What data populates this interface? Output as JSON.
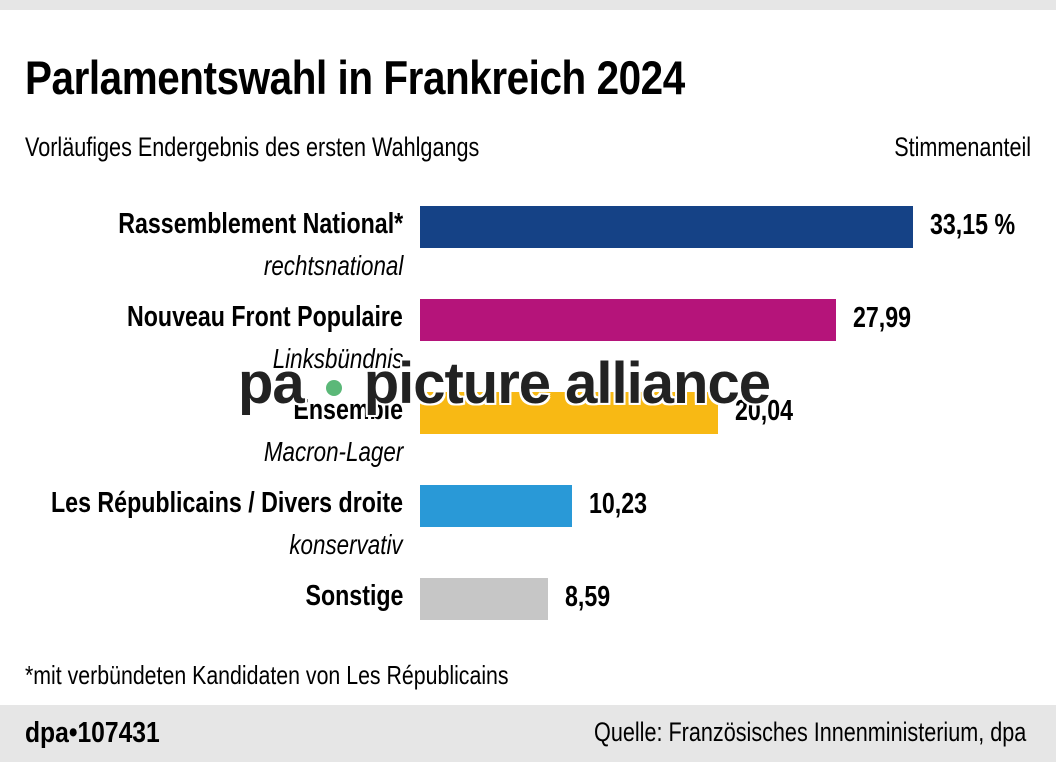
{
  "title": "Parlamentswahl in Frankreich 2024",
  "subtitle": "Vorläufiges Endergebnis des ersten Wahlgangs",
  "unit_label": "Stimmenanteil",
  "footnote": "*mit verbündeten Kandidaten von Les Républicains",
  "footer": {
    "id": "dpa•107431",
    "source": "Quelle: Französisches Innenministerium, dpa"
  },
  "watermark": {
    "left": "pa",
    "right": "picture alliance",
    "dot_color": "#5bb878"
  },
  "chart_data": {
    "type": "bar",
    "orientation": "horizontal",
    "title": "Parlamentswahl in Frankreich 2024",
    "xlabel": "Stimmenanteil",
    "xlim": [
      0,
      33.15
    ],
    "grid": false,
    "categories": [
      "Rassemblement National*",
      "Nouveau Front Populaire",
      "Ensemble",
      "Les Républicains / Divers droite",
      "Sonstige"
    ],
    "descriptions": [
      "rechtsnational",
      "Linksbündnis",
      "Macron-Lager",
      "konservativ",
      ""
    ],
    "values": [
      33.15,
      27.99,
      20.04,
      10.23,
      8.59
    ],
    "value_labels": [
      "33,15 %",
      "27,99",
      "20,04",
      "10,23",
      "8,59"
    ],
    "colors": [
      "#154286",
      "#b5147a",
      "#f8b914",
      "#2999d7",
      "#c6c6c6"
    ]
  }
}
